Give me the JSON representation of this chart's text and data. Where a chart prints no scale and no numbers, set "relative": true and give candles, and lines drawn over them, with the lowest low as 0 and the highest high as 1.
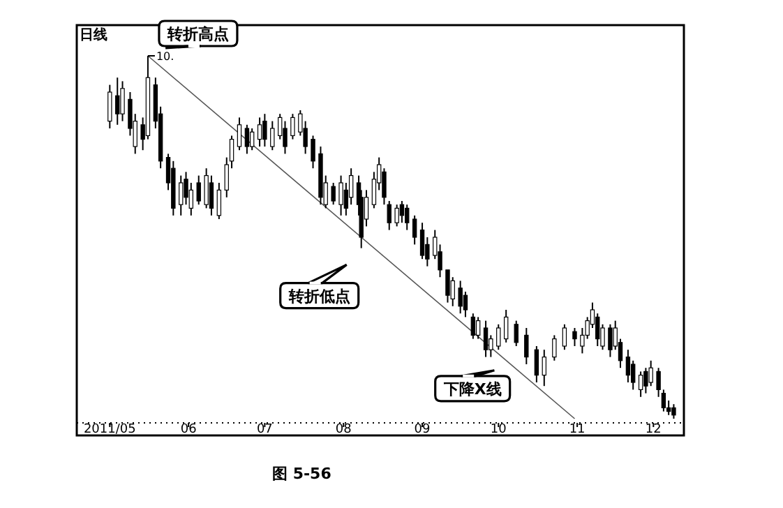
{
  "chart_data": {
    "type": "candlestick",
    "title": "日线",
    "relative": true,
    "color": "#000000",
    "x": [
      "2011-05-01",
      "2011-05-04",
      "2011-05-06",
      "2011-05-09",
      "2011-05-11",
      "2011-05-14",
      "2011-05-16",
      "2011-05-19",
      "2011-05-21",
      "2011-05-24",
      "2011-05-26",
      "2011-05-29",
      "2011-05-31",
      "2011-06-02",
      "2011-06-05",
      "2011-06-08",
      "2011-06-10",
      "2011-06-13",
      "2011-06-16",
      "2011-06-18",
      "2011-06-21",
      "2011-06-24",
      "2011-06-26",
      "2011-06-29",
      "2011-07-01",
      "2011-07-04",
      "2011-07-07",
      "2011-07-09",
      "2011-07-12",
      "2011-07-15",
      "2011-07-17",
      "2011-07-20",
      "2011-07-23",
      "2011-07-25",
      "2011-07-28",
      "2011-07-31",
      "2011-08-02",
      "2011-08-04",
      "2011-08-07",
      "2011-08-08",
      "2011-08-10",
      "2011-08-13",
      "2011-08-15",
      "2011-08-17",
      "2011-08-19",
      "2011-08-22",
      "2011-08-24",
      "2011-08-26",
      "2011-08-29",
      "2011-09-01",
      "2011-09-03",
      "2011-09-06",
      "2011-09-08",
      "2011-09-11",
      "2011-09-13",
      "2011-09-16",
      "2011-09-18",
      "2011-09-21",
      "2011-09-23",
      "2011-09-26",
      "2011-09-28",
      "2011-10-01",
      "2011-10-04",
      "2011-10-08",
      "2011-10-12",
      "2011-10-16",
      "2011-10-19",
      "2011-10-23",
      "2011-10-27",
      "2011-10-31",
      "2011-11-03",
      "2011-11-05",
      "2011-11-07",
      "2011-11-09",
      "2011-11-11",
      "2011-11-14",
      "2011-11-16",
      "2011-11-18",
      "2011-11-21",
      "2011-11-23",
      "2011-11-26",
      "2011-11-28",
      "2011-11-30",
      "2011-12-03",
      "2011-12-05",
      "2011-12-07",
      "2011-12-09"
    ],
    "ohlc": [
      [
        0.82,
        0.92,
        0.8,
        0.9
      ],
      [
        0.89,
        0.94,
        0.81,
        0.84
      ],
      [
        0.84,
        0.93,
        0.82,
        0.91
      ],
      [
        0.88,
        0.9,
        0.78,
        0.8
      ],
      [
        0.75,
        0.84,
        0.73,
        0.82
      ],
      [
        0.81,
        0.83,
        0.74,
        0.77
      ],
      [
        0.78,
        1,
        0.77,
        0.94
      ],
      [
        0.92,
        0.94,
        0.8,
        0.82
      ],
      [
        0.84,
        0.86,
        0.69,
        0.71
      ],
      [
        0.72,
        0.73,
        0.63,
        0.65
      ],
      [
        0.69,
        0.71,
        0.56,
        0.58
      ],
      [
        0.59,
        0.67,
        0.56,
        0.65
      ],
      [
        0.66,
        0.68,
        0.59,
        0.61
      ],
      [
        0.58,
        0.65,
        0.56,
        0.63
      ],
      [
        0.65,
        0.67,
        0.59,
        0.6
      ],
      [
        0.59,
        0.69,
        0.58,
        0.67
      ],
      [
        0.65,
        0.67,
        0.56,
        0.58
      ],
      [
        0.56,
        0.65,
        0.55,
        0.63
      ],
      [
        0.63,
        0.72,
        0.61,
        0.7
      ],
      [
        0.71,
        0.78,
        0.69,
        0.77
      ],
      [
        0.75,
        0.83,
        0.74,
        0.81
      ],
      [
        0.8,
        0.81,
        0.73,
        0.75
      ],
      [
        0.75,
        0.8,
        0.74,
        0.79
      ],
      [
        0.77,
        0.83,
        0.75,
        0.81
      ],
      [
        0.82,
        0.84,
        0.75,
        0.77
      ],
      [
        0.75,
        0.82,
        0.74,
        0.8
      ],
      [
        0.78,
        0.84,
        0.77,
        0.83
      ],
      [
        0.8,
        0.82,
        0.73,
        0.75
      ],
      [
        0.78,
        0.84,
        0.77,
        0.83
      ],
      [
        0.79,
        0.85,
        0.78,
        0.84
      ],
      [
        0.8,
        0.82,
        0.73,
        0.75
      ],
      [
        0.77,
        0.78,
        0.69,
        0.71
      ],
      [
        0.73,
        0.75,
        0.59,
        0.61
      ],
      [
        0.59,
        0.67,
        0.58,
        0.65
      ],
      [
        0.64,
        0.65,
        0.59,
        0.6
      ],
      [
        0.59,
        0.67,
        0.56,
        0.65
      ],
      [
        0.63,
        0.65,
        0.56,
        0.58
      ],
      [
        0.61,
        0.69,
        0.59,
        0.67
      ],
      [
        0.65,
        0.67,
        0.56,
        0.59
      ],
      [
        0.61,
        0.63,
        0.47,
        0.5
      ],
      [
        0.55,
        0.63,
        0.53,
        0.61
      ],
      [
        0.59,
        0.68,
        0.58,
        0.66
      ],
      [
        0.65,
        0.72,
        0.63,
        0.7
      ],
      [
        0.68,
        0.69,
        0.59,
        0.61
      ],
      [
        0.59,
        0.6,
        0.52,
        0.54
      ],
      [
        0.54,
        0.59,
        0.53,
        0.58
      ],
      [
        0.59,
        0.6,
        0.54,
        0.56
      ],
      [
        0.58,
        0.59,
        0.52,
        0.54
      ],
      [
        0.55,
        0.56,
        0.48,
        0.5
      ],
      [
        0.52,
        0.54,
        0.44,
        0.45
      ],
      [
        0.48,
        0.5,
        0.42,
        0.44
      ],
      [
        0.45,
        0.52,
        0.44,
        0.5
      ],
      [
        0.46,
        0.48,
        0.39,
        0.41
      ],
      [
        0.41,
        0.41,
        0.32,
        0.34
      ],
      [
        0.33,
        0.39,
        0.31,
        0.38
      ],
      [
        0.36,
        0.38,
        0.29,
        0.31
      ],
      [
        0.34,
        0.35,
        0.28,
        0.3
      ],
      [
        0.28,
        0.29,
        0.22,
        0.23
      ],
      [
        0.23,
        0.28,
        0.22,
        0.27
      ],
      [
        0.25,
        0.27,
        0.17,
        0.19
      ],
      [
        0.19,
        0.23,
        0.17,
        0.22
      ],
      [
        0.2,
        0.26,
        0.19,
        0.25
      ],
      [
        0.22,
        0.3,
        0.21,
        0.28
      ],
      [
        0.26,
        0.27,
        0.2,
        0.21
      ],
      [
        0.23,
        0.25,
        0.15,
        0.17
      ],
      [
        0.19,
        0.2,
        0.1,
        0.12
      ],
      [
        0.12,
        0.19,
        0.09,
        0.17
      ],
      [
        0.17,
        0.23,
        0.16,
        0.22
      ],
      [
        0.2,
        0.26,
        0.19,
        0.25
      ],
      [
        0.24,
        0.25,
        0.2,
        0.22
      ],
      [
        0.2,
        0.25,
        0.18,
        0.23
      ],
      [
        0.23,
        0.28,
        0.22,
        0.27
      ],
      [
        0.26,
        0.32,
        0.25,
        0.3
      ],
      [
        0.28,
        0.29,
        0.2,
        0.22
      ],
      [
        0.2,
        0.26,
        0.19,
        0.25
      ],
      [
        0.25,
        0.26,
        0.17,
        0.19
      ],
      [
        0.2,
        0.27,
        0.19,
        0.25
      ],
      [
        0.21,
        0.22,
        0.14,
        0.16
      ],
      [
        0.17,
        0.19,
        0.1,
        0.12
      ],
      [
        0.15,
        0.16,
        0.08,
        0.1
      ],
      [
        0.08,
        0.13,
        0.06,
        0.12
      ],
      [
        0.13,
        0.14,
        0.07,
        0.09
      ],
      [
        0.1,
        0.16,
        0.09,
        0.14
      ],
      [
        0.13,
        0.14,
        0.06,
        0.08
      ],
      [
        0.07,
        0.08,
        0.02,
        0.03
      ],
      [
        0.03,
        0.05,
        0.01,
        0.02
      ],
      [
        0.03,
        0.04,
        0,
        0.01
      ]
    ],
    "series": [
      {
        "type": "line",
        "color": "#555555",
        "x": [
          "2011-05-16",
          "2011-10-31"
        ],
        "values": [
          1,
          0
        ]
      }
    ],
    "xlim": [
      "2011-04-18",
      "2011-12-13"
    ],
    "xticks": [
      {
        "value": "2011-05-01",
        "label": "2011/05"
      },
      {
        "value": "2011-06-01",
        "label": "06"
      },
      {
        "value": "2011-07-01",
        "label": "07"
      },
      {
        "value": "2011-08-01",
        "label": "08"
      },
      {
        "value": "2011-09-01",
        "label": "09"
      },
      {
        "value": "2011-10-01",
        "label": "10"
      },
      {
        "value": "2011-11-01",
        "label": "11"
      },
      {
        "value": "2011-12-01",
        "label": "12"
      }
    ],
    "annotations": [
      {
        "text": "10.",
        "x": "2011-05-16",
        "y": 1
      },
      {
        "text": "转折高点",
        "x": "2011-05-16",
        "y": 1
      },
      {
        "text": "转折低点",
        "x": "2011-08-08",
        "y": 0.47
      },
      {
        "text": "下降X线",
        "x": "2011-10-04",
        "y": 0.16
      },
      "图 5-56"
    ]
  }
}
